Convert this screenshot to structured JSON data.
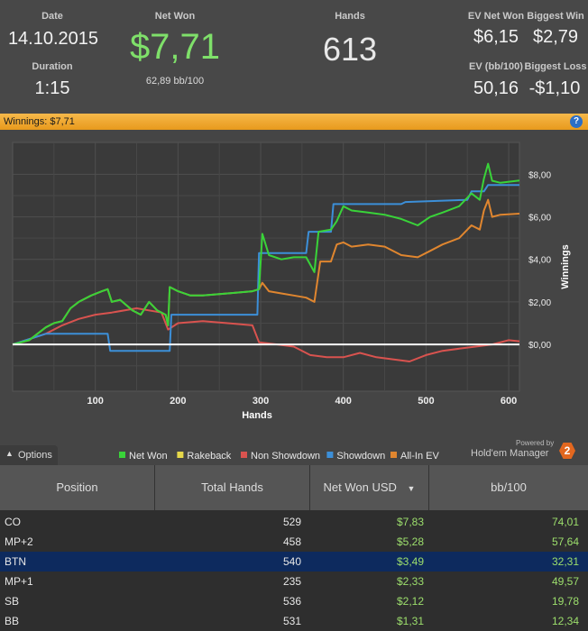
{
  "stats": {
    "date_label": "Date",
    "date": "14.10.2015",
    "duration_label": "Duration",
    "duration": "1:15",
    "net_won_label": "Net Won",
    "net_won": "$7,71",
    "net_won_bb": "62,89 bb/100",
    "hands_label": "Hands",
    "hands": "613",
    "ev_net_won_label": "EV Net Won",
    "ev_net_won": "$6,15",
    "biggest_win_label": "Biggest Win",
    "biggest_win": "$2,79",
    "ev_bb_label": "EV (bb/100)",
    "ev_bb": "50,16",
    "biggest_loss_label": "Biggest Loss",
    "biggest_loss": "-$1,10"
  },
  "banner": {
    "text": "Winnings: $7,71",
    "help": "?"
  },
  "chart_data": {
    "type": "line",
    "xlabel": "Hands",
    "ylabel": "Winnings",
    "xlim": [
      0,
      613
    ],
    "ylim": [
      -2.2,
      9.5
    ],
    "x_ticks": [
      "100",
      "200",
      "300",
      "400",
      "500",
      "600"
    ],
    "y_ticks": [
      "$8,00",
      "$6,00",
      "$4,00",
      "$2,00",
      "$0,00"
    ],
    "grid": true,
    "legend_position": "bottom",
    "series": [
      {
        "name": "Net Won",
        "color": "#39d339",
        "points": [
          [
            0,
            0
          ],
          [
            20,
            0.2
          ],
          [
            40,
            0.8
          ],
          [
            50,
            1.0
          ],
          [
            60,
            1.1
          ],
          [
            70,
            1.7
          ],
          [
            80,
            2.0
          ],
          [
            95,
            2.3
          ],
          [
            108,
            2.5
          ],
          [
            115,
            2.6
          ],
          [
            120,
            2.0
          ],
          [
            130,
            2.1
          ],
          [
            145,
            1.6
          ],
          [
            155,
            1.4
          ],
          [
            165,
            2.0
          ],
          [
            175,
            1.6
          ],
          [
            185,
            1.4
          ],
          [
            188,
            0.9
          ],
          [
            190,
            2.7
          ],
          [
            200,
            2.5
          ],
          [
            215,
            2.3
          ],
          [
            230,
            2.3
          ],
          [
            260,
            2.4
          ],
          [
            290,
            2.5
          ],
          [
            298,
            2.6
          ],
          [
            302,
            5.2
          ],
          [
            310,
            4.2
          ],
          [
            325,
            4.0
          ],
          [
            340,
            4.1
          ],
          [
            355,
            4.1
          ],
          [
            365,
            3.4
          ],
          [
            370,
            5.3
          ],
          [
            385,
            5.4
          ],
          [
            392,
            5.8
          ],
          [
            400,
            6.5
          ],
          [
            410,
            6.3
          ],
          [
            430,
            6.2
          ],
          [
            450,
            6.1
          ],
          [
            470,
            5.9
          ],
          [
            490,
            5.6
          ],
          [
            505,
            6.0
          ],
          [
            520,
            6.2
          ],
          [
            540,
            6.5
          ],
          [
            555,
            7.1
          ],
          [
            565,
            6.8
          ],
          [
            570,
            7.8
          ],
          [
            575,
            8.5
          ],
          [
            580,
            7.7
          ],
          [
            590,
            7.6
          ],
          [
            613,
            7.71
          ]
        ]
      },
      {
        "name": "Rakeback",
        "color": "#e6d84a",
        "points": []
      },
      {
        "name": "Non Showdown",
        "color": "#d9534f",
        "points": [
          [
            0,
            0
          ],
          [
            40,
            0.5
          ],
          [
            60,
            0.9
          ],
          [
            80,
            1.2
          ],
          [
            100,
            1.4
          ],
          [
            120,
            1.5
          ],
          [
            150,
            1.7
          ],
          [
            180,
            1.5
          ],
          [
            188,
            0.7
          ],
          [
            200,
            1.0
          ],
          [
            230,
            1.1
          ],
          [
            260,
            1.0
          ],
          [
            290,
            0.9
          ],
          [
            298,
            0.1
          ],
          [
            320,
            0.0
          ],
          [
            340,
            -0.1
          ],
          [
            360,
            -0.5
          ],
          [
            380,
            -0.6
          ],
          [
            400,
            -0.6
          ],
          [
            420,
            -0.4
          ],
          [
            440,
            -0.6
          ],
          [
            460,
            -0.7
          ],
          [
            480,
            -0.8
          ],
          [
            500,
            -0.5
          ],
          [
            520,
            -0.3
          ],
          [
            540,
            -0.2
          ],
          [
            560,
            -0.1
          ],
          [
            580,
            0.0
          ],
          [
            600,
            0.2
          ],
          [
            613,
            0.15
          ]
        ]
      },
      {
        "name": "Showdown",
        "color": "#3c8fd8",
        "points": [
          [
            0,
            0
          ],
          [
            40,
            0.5
          ],
          [
            60,
            0.5
          ],
          [
            90,
            0.5
          ],
          [
            115,
            0.5
          ],
          [
            118,
            -0.3
          ],
          [
            145,
            -0.3
          ],
          [
            190,
            -0.3
          ],
          [
            192,
            1.4
          ],
          [
            240,
            1.4
          ],
          [
            285,
            1.4
          ],
          [
            296,
            1.4
          ],
          [
            298,
            4.3
          ],
          [
            340,
            4.3
          ],
          [
            355,
            4.3
          ],
          [
            358,
            5.3
          ],
          [
            385,
            5.3
          ],
          [
            388,
            6.6
          ],
          [
            470,
            6.6
          ],
          [
            475,
            6.7
          ],
          [
            550,
            6.8
          ],
          [
            555,
            7.2
          ],
          [
            570,
            7.2
          ],
          [
            575,
            7.5
          ],
          [
            613,
            7.5
          ]
        ]
      },
      {
        "name": "All-In EV",
        "color": "#e0862f",
        "points": [
          [
            0,
            0
          ],
          [
            20,
            0.2
          ],
          [
            40,
            0.8
          ],
          [
            50,
            1.0
          ],
          [
            60,
            1.1
          ],
          [
            70,
            1.7
          ],
          [
            80,
            2.0
          ],
          [
            95,
            2.3
          ],
          [
            108,
            2.5
          ],
          [
            115,
            2.6
          ],
          [
            120,
            2.0
          ],
          [
            130,
            2.1
          ],
          [
            145,
            1.6
          ],
          [
            155,
            1.4
          ],
          [
            165,
            2.0
          ],
          [
            175,
            1.6
          ],
          [
            185,
            1.4
          ],
          [
            188,
            0.9
          ],
          [
            190,
            2.7
          ],
          [
            200,
            2.5
          ],
          [
            215,
            2.3
          ],
          [
            230,
            2.3
          ],
          [
            260,
            2.4
          ],
          [
            290,
            2.5
          ],
          [
            298,
            2.6
          ],
          [
            302,
            2.9
          ],
          [
            310,
            2.5
          ],
          [
            325,
            2.4
          ],
          [
            340,
            2.3
          ],
          [
            355,
            2.2
          ],
          [
            365,
            2.0
          ],
          [
            372,
            3.9
          ],
          [
            385,
            3.9
          ],
          [
            392,
            4.7
          ],
          [
            400,
            4.8
          ],
          [
            410,
            4.6
          ],
          [
            430,
            4.7
          ],
          [
            450,
            4.6
          ],
          [
            470,
            4.2
          ],
          [
            490,
            4.1
          ],
          [
            505,
            4.4
          ],
          [
            520,
            4.7
          ],
          [
            540,
            5.0
          ],
          [
            555,
            5.6
          ],
          [
            565,
            5.4
          ],
          [
            570,
            6.3
          ],
          [
            575,
            6.8
          ],
          [
            580,
            6.0
          ],
          [
            590,
            6.1
          ],
          [
            613,
            6.15
          ]
        ]
      }
    ]
  },
  "legend": {
    "items": [
      "Net Won",
      "Rakeback",
      "Non Showdown",
      "Showdown",
      "All-In EV"
    ]
  },
  "options_label": "Options",
  "powered": {
    "top": "Powered by",
    "name": "Hold'em Manager",
    "badge": "2"
  },
  "table": {
    "headers": [
      "Position",
      "Total Hands",
      "Net Won USD",
      "bb/100"
    ],
    "rows": [
      {
        "position": "CO",
        "hands": "529",
        "net_won": "$7,83",
        "bb100": "74,01"
      },
      {
        "position": "MP+2",
        "hands": "458",
        "net_won": "$5,28",
        "bb100": "57,64"
      },
      {
        "position": "BTN",
        "hands": "540",
        "net_won": "$3,49",
        "bb100": "32,31"
      },
      {
        "position": "MP+1",
        "hands": "235",
        "net_won": "$2,33",
        "bb100": "49,57"
      },
      {
        "position": "SB",
        "hands": "536",
        "net_won": "$2,12",
        "bb100": "19,78"
      },
      {
        "position": "BB",
        "hands": "531",
        "net_won": "$1,31",
        "bb100": "12,34"
      }
    ]
  }
}
